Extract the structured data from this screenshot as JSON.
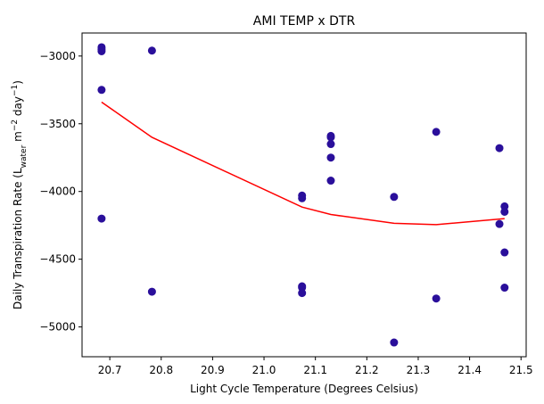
{
  "chart_data": {
    "type": "scatter",
    "title": "AMI TEMP x DTR",
    "xlabel": "Light Cycle Temperature (Degrees Celsius)",
    "ylabel": {
      "prefix": "Daily Transpiration Rate (L",
      "subscript": "water",
      "middle": " m",
      "superscript1": "−2",
      "middle2": " day",
      "superscript2": "−1",
      "suffix": ")"
    },
    "xlim": [
      20.646,
      21.51
    ],
    "ylim": [
      -5220,
      -2830
    ],
    "x_ticks": [
      20.7,
      20.8,
      20.9,
      21.0,
      21.1,
      21.2,
      21.3,
      21.4,
      21.5
    ],
    "x_tick_labels": [
      "20.7",
      "20.8",
      "20.9",
      "21.0",
      "21.1",
      "21.2",
      "21.3",
      "21.4",
      "21.5"
    ],
    "y_ticks": [
      -3000,
      -3500,
      -4000,
      -4500,
      -5000
    ],
    "y_tick_labels": [
      "−3000",
      "−3500",
      "−4000",
      "−4500",
      "−5000"
    ],
    "grid": false,
    "series": [
      {
        "kind": "scatter",
        "color": "#2a0f9b",
        "points": [
          [
            20.684,
            -2935
          ],
          [
            20.684,
            -2950
          ],
          [
            20.684,
            -2965
          ],
          [
            20.684,
            -3250
          ],
          [
            20.684,
            -4200
          ],
          [
            20.782,
            -2960
          ],
          [
            20.782,
            -4740
          ],
          [
            21.074,
            -4030
          ],
          [
            21.074,
            -4050
          ],
          [
            21.074,
            -4700
          ],
          [
            21.074,
            -4710
          ],
          [
            21.074,
            -4750
          ],
          [
            21.13,
            -3590
          ],
          [
            21.13,
            -3600
          ],
          [
            21.13,
            -3650
          ],
          [
            21.13,
            -3750
          ],
          [
            21.13,
            -3920
          ],
          [
            21.253,
            -4040
          ],
          [
            21.253,
            -5115
          ],
          [
            21.335,
            -3560
          ],
          [
            21.335,
            -4790
          ],
          [
            21.458,
            -3680
          ],
          [
            21.458,
            -4240
          ],
          [
            21.468,
            -4110
          ],
          [
            21.468,
            -4150
          ],
          [
            21.468,
            -4450
          ],
          [
            21.468,
            -4710
          ]
        ]
      },
      {
        "kind": "line",
        "color": "#ff0000",
        "points": [
          [
            20.684,
            -3340
          ],
          [
            20.782,
            -3600
          ],
          [
            21.074,
            -4115
          ],
          [
            21.13,
            -4170
          ],
          [
            21.253,
            -4235
          ],
          [
            21.335,
            -4245
          ],
          [
            21.468,
            -4200
          ]
        ]
      }
    ]
  }
}
